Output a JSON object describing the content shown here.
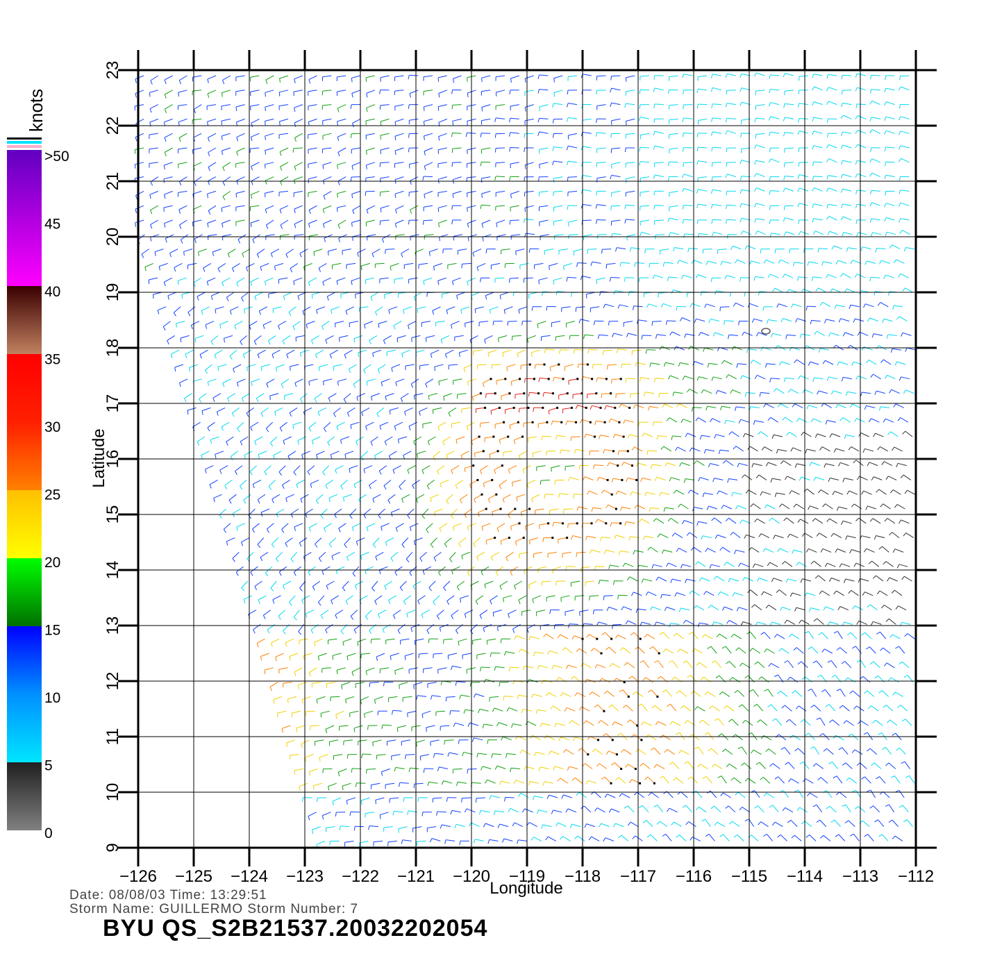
{
  "map": {
    "x_label": "Longitude",
    "y_label": "Latitude",
    "lon_range": [
      -126,
      -112
    ],
    "lat_range": [
      9,
      23
    ],
    "lon_ticks": [
      "−126",
      "−125",
      "−124",
      "−123",
      "−122",
      "−121",
      "−120",
      "−119",
      "−118",
      "−117",
      "−116",
      "−115",
      "−114",
      "−113",
      "−112"
    ],
    "lat_ticks": [
      "9",
      "10",
      "11",
      "12",
      "13",
      "14",
      "15",
      "16",
      "17",
      "18",
      "19",
      "20",
      "21",
      "22",
      "23"
    ],
    "grid": true,
    "swath_left_edge": [
      [
        -126,
        20.1
      ],
      [
        -123,
        10
      ]
    ],
    "storm_center": [
      -118.5,
      15.8
    ],
    "land_marker": [
      -114.7,
      18.3
    ]
  },
  "colorbar": {
    "units": "knots",
    "labels": [
      ">50",
      "45",
      "40",
      "35",
      "30",
      "25",
      "20",
      "15",
      "10",
      "5",
      "0"
    ],
    "colors": [
      "#000000",
      "#00e5ff",
      "#ffb0c8"
    ],
    "gradient": {
      "0": "#808080",
      "5": "#202020",
      "5.01": "#00e5ff",
      "10": "#0090ff",
      "15": "#0000ff",
      "15.01": "#007000",
      "20": "#00ff00",
      "20.01": "#ffff00",
      "25": "#ffc000",
      "25.01": "#ff8000",
      "30": "#ff2000",
      "35": "#ff0000",
      "35.01": "#c08060",
      "40": "#3a0000",
      "40.01": "#ff00ff",
      "50": "#6000c0"
    }
  },
  "footer": {
    "date_line": "Date: 08/08/03   Time: 13:29:51",
    "storm_line": "Storm Name: GUILLERMO   Storm Number: 7",
    "file_title": "BYU QS_S2B21537.20032202054"
  }
}
